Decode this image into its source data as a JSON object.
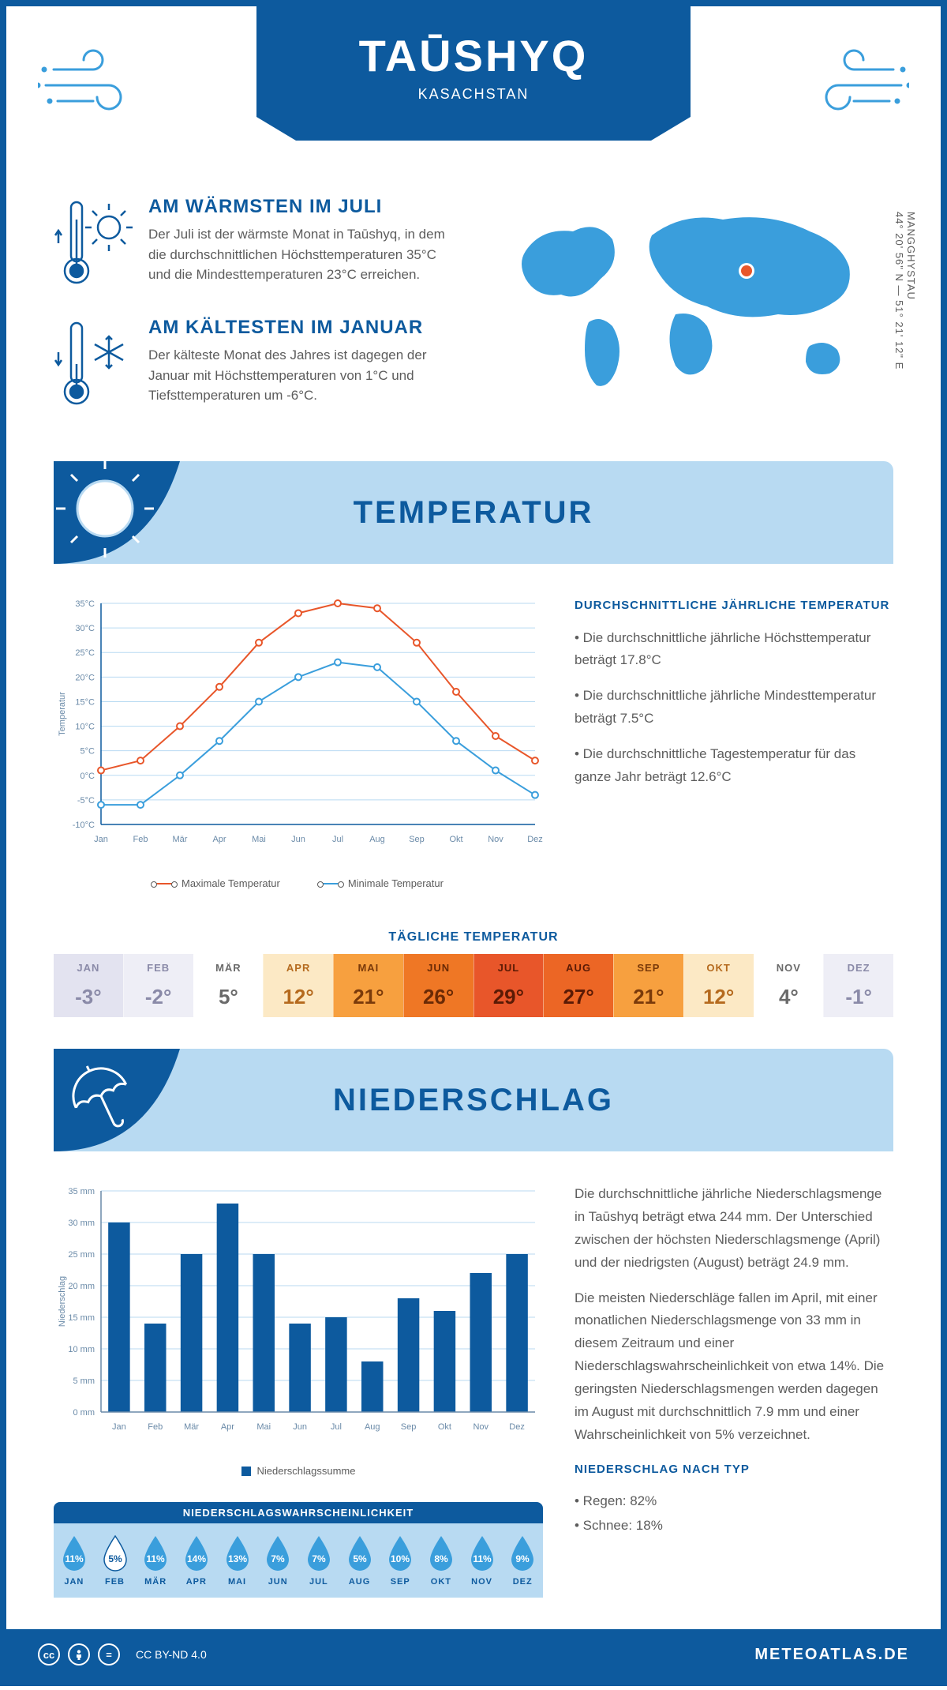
{
  "header": {
    "title": "TAŪSHYQ",
    "subtitle": "KASACHSTAN",
    "coords": "44° 20' 56\" N — 51° 21' 12\" E",
    "region": "MANGGHYSTAU"
  },
  "facts": {
    "warm": {
      "title": "AM WÄRMSTEN IM JULI",
      "text": "Der Juli ist der wärmste Monat in Taūshyq, in dem die durchschnittlichen Höchsttemperaturen 35°C und die Mindesttemperaturen 23°C erreichen."
    },
    "cold": {
      "title": "AM KÄLTESTEN IM JANUAR",
      "text": "Der kälteste Monat des Jahres ist dagegen der Januar mit Höchsttemperaturen von 1°C und Tiefsttemperaturen um -6°C."
    }
  },
  "sections": {
    "temperature": "TEMPERATUR",
    "precipitation": "NIEDERSCHLAG"
  },
  "months": [
    "Jan",
    "Feb",
    "Mär",
    "Apr",
    "Mai",
    "Jun",
    "Jul",
    "Aug",
    "Sep",
    "Okt",
    "Nov",
    "Dez"
  ],
  "months_upper": [
    "JAN",
    "FEB",
    "MÄR",
    "APR",
    "MAI",
    "JUN",
    "JUL",
    "AUG",
    "SEP",
    "OKT",
    "NOV",
    "DEZ"
  ],
  "temp_chart": {
    "type": "line",
    "ylabel": "Temperatur",
    "ylim": [
      -10,
      35
    ],
    "ytick_step": 5,
    "yunit": "°C",
    "max_series": {
      "label": "Maximale Temperatur",
      "color": "#e8562a",
      "values": [
        1,
        3,
        10,
        18,
        27,
        33,
        35,
        34,
        27,
        17,
        8,
        3
      ]
    },
    "min_series": {
      "label": "Minimale Temperatur",
      "color": "#3a9edc",
      "values": [
        -6,
        -6,
        0,
        7,
        15,
        20,
        23,
        22,
        15,
        7,
        1,
        -4
      ]
    },
    "grid_color": "#b8daf2",
    "axis_color": "#0d5a9e",
    "label_fontsize": 11
  },
  "temp_side": {
    "heading": "DURCHSCHNITTLICHE JÄHRLICHE TEMPERATUR",
    "b1": "• Die durchschnittliche jährliche Höchsttemperatur beträgt 17.8°C",
    "b2": "• Die durchschnittliche jährliche Mindesttemperatur beträgt 7.5°C",
    "b3": "• Die durchschnittliche Tagestemperatur für das ganze Jahr beträgt 12.6°C"
  },
  "daily": {
    "title": "TÄGLICHE TEMPERATUR",
    "cells": [
      {
        "m": "JAN",
        "t": "-3°",
        "bg": "#e3e3f0",
        "fg": "#8a8aa8"
      },
      {
        "m": "FEB",
        "t": "-2°",
        "bg": "#eeeef6",
        "fg": "#8a8aa8"
      },
      {
        "m": "MÄR",
        "t": "5°",
        "bg": "#ffffff",
        "fg": "#6a6a6a"
      },
      {
        "m": "APR",
        "t": "12°",
        "bg": "#fce9c5",
        "fg": "#b56a1e"
      },
      {
        "m": "MAI",
        "t": "21°",
        "bg": "#f7a03f",
        "fg": "#7a3a0a"
      },
      {
        "m": "JUN",
        "t": "26°",
        "bg": "#ef7725",
        "fg": "#6a2a05"
      },
      {
        "m": "JUL",
        "t": "29°",
        "bg": "#e8562a",
        "fg": "#5a1a05"
      },
      {
        "m": "AUG",
        "t": "27°",
        "bg": "#ec6625",
        "fg": "#5a1a05"
      },
      {
        "m": "SEP",
        "t": "21°",
        "bg": "#f7a03f",
        "fg": "#7a3a0a"
      },
      {
        "m": "OKT",
        "t": "12°",
        "bg": "#fce9c5",
        "fg": "#b56a1e"
      },
      {
        "m": "NOV",
        "t": "4°",
        "bg": "#ffffff",
        "fg": "#6a6a6a"
      },
      {
        "m": "DEZ",
        "t": "-1°",
        "bg": "#eeeef6",
        "fg": "#8a8aa8"
      }
    ]
  },
  "precip_chart": {
    "type": "bar",
    "ylabel": "Niederschlag",
    "ylim": [
      0,
      35
    ],
    "ytick_step": 5,
    "yunit": " mm",
    "values": [
      30,
      14,
      25,
      33,
      25,
      14,
      15,
      8,
      18,
      16,
      22,
      25
    ],
    "bar_color": "#0d5a9e",
    "grid_color": "#b8daf2",
    "axis_color": "#6a8aa8",
    "legend": "Niederschlagssumme",
    "label_fontsize": 11
  },
  "precip_side": {
    "p1": "Die durchschnittliche jährliche Niederschlagsmenge in Taūshyq beträgt etwa 244 mm. Der Unterschied zwischen der höchsten Niederschlagsmenge (April) und der niedrigsten (August) beträgt 24.9 mm.",
    "p2": "Die meisten Niederschläge fallen im April, mit einer monatlichen Niederschlagsmenge von 33 mm in diesem Zeitraum und einer Niederschlagswahrscheinlichkeit von etwa 14%. Die geringsten Niederschlagsmengen werden dagegen im August mit durchschnittlich 7.9 mm und einer Wahrscheinlichkeit von 5% verzeichnet.",
    "type_heading": "NIEDERSCHLAG NACH TYP",
    "type_b1": "• Regen: 82%",
    "type_b2": "• Schnee: 18%"
  },
  "precip_prob": {
    "title": "NIEDERSCHLAGSWAHRSCHEINLICHKEIT",
    "values": [
      "11%",
      "5%",
      "11%",
      "14%",
      "13%",
      "7%",
      "7%",
      "5%",
      "10%",
      "8%",
      "11%",
      "9%"
    ],
    "min_index": 1,
    "drop_fill": "#3a9edc",
    "drop_min_fill": "#ffffff"
  },
  "footer": {
    "license": "CC BY-ND 4.0",
    "brand": "METEOATLAS.DE"
  },
  "colors": {
    "primary": "#0d5a9e",
    "light": "#b8daf2",
    "accent": "#3a9edc"
  }
}
